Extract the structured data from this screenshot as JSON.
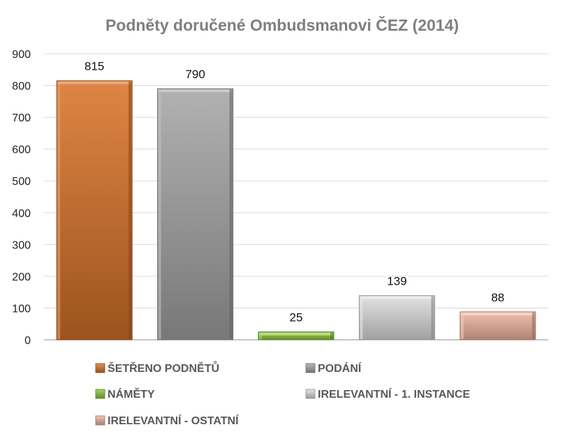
{
  "chart_data": {
    "type": "bar",
    "title": "Podněty doručené Ombudsmanovi ČEZ (2014)",
    "xlabel": "",
    "ylabel": "",
    "ylim": [
      0,
      900
    ],
    "yticks": [
      0,
      100,
      200,
      300,
      400,
      500,
      600,
      700,
      800,
      900
    ],
    "grid": true,
    "legend_position": "bottom",
    "categories": [
      "ŠETŘENO PODNĚTŮ",
      "PODÁNÍ",
      "NÁMĚTY",
      "IRELEVANTNÍ - 1. INSTANCE",
      "IRELEVANTNÍ - OSTATNÍ"
    ],
    "values": [
      815,
      790,
      25,
      139,
      88
    ],
    "data_labels": [
      "815",
      "790",
      "25",
      "139",
      "88"
    ],
    "colors": [
      "#d9742a",
      "#a6a6a6",
      "#8fc63c",
      "#dedede",
      "#f1b6a0"
    ],
    "legend": [
      {
        "label": "ŠETŘENO PODNĚTŮ",
        "color": "#d9742a"
      },
      {
        "label": "PODÁNÍ",
        "color": "#a6a6a6"
      },
      {
        "label": "NÁMĚTY",
        "color": "#8fc63c"
      },
      {
        "label": "IRELEVANTNÍ - 1. INSTANCE",
        "color": "#dedede"
      },
      {
        "label": "IRELEVANTNÍ - OSTATNÍ",
        "color": "#f1b6a0"
      }
    ]
  }
}
